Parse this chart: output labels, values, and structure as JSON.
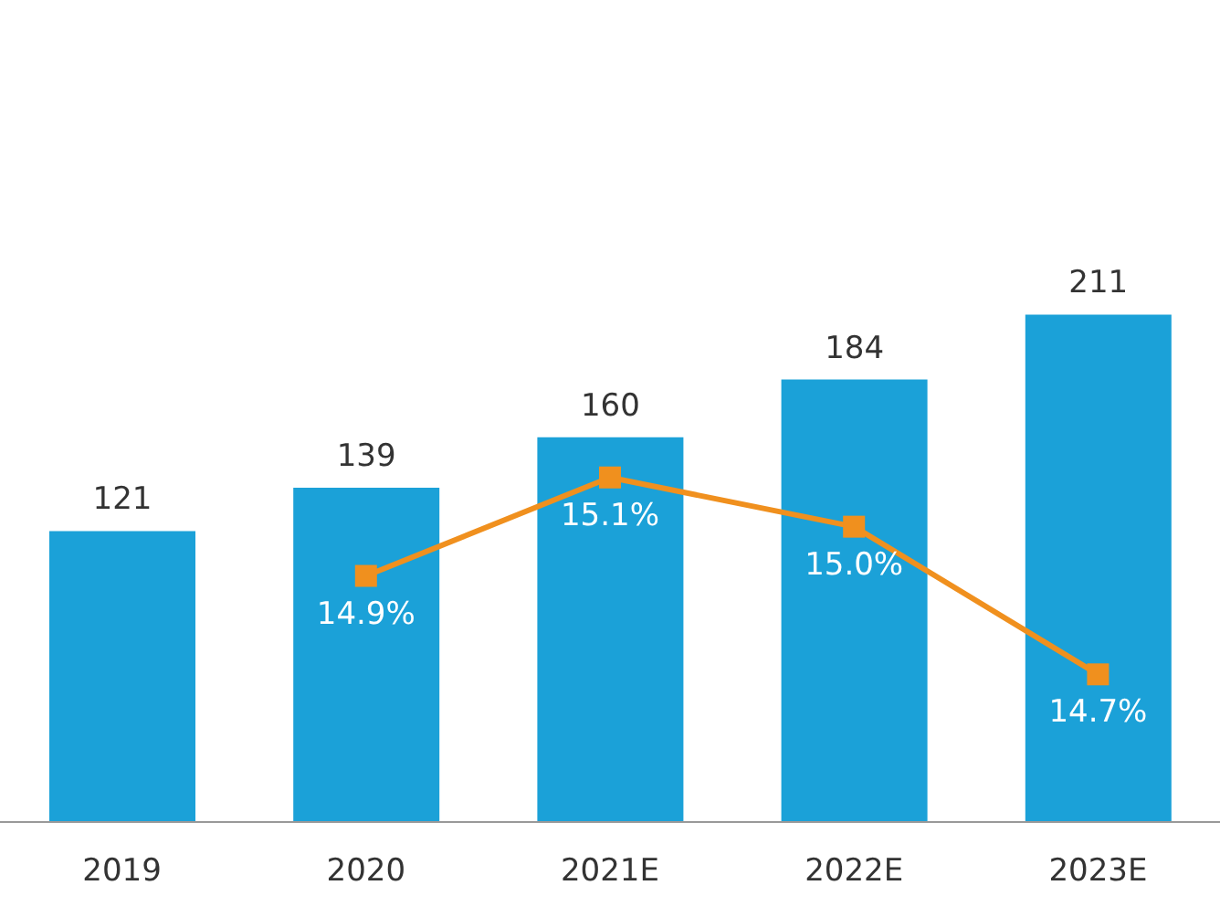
{
  "chart_data": {
    "type": "bar",
    "categories": [
      "2019",
      "2020",
      "2021E",
      "2022E",
      "2023E"
    ],
    "series": [
      {
        "color": "#1ba1d8",
        "values": [
          121,
          139,
          160,
          184,
          211
        ]
      },
      {
        "type": "line",
        "axis": "y2",
        "color": "#f0901e",
        "values": [
          null,
          14.9,
          15.1,
          15.0,
          14.7
        ],
        "value_labels": [
          null,
          "14.9%",
          "15.1%",
          "15.0%",
          "14.7%"
        ]
      }
    ],
    "data_labels": true,
    "marker": "square",
    "grid": false,
    "legend": false
  }
}
